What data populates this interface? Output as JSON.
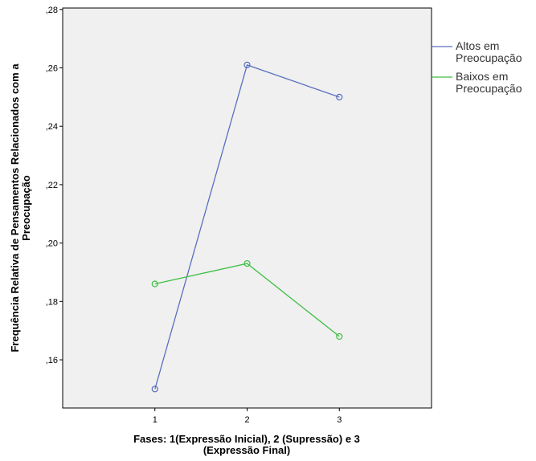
{
  "chart_data": {
    "type": "line",
    "x": [
      1,
      2,
      3
    ],
    "x_tick_labels": [
      "1",
      "2",
      "3"
    ],
    "y_tick_labels": [
      ",16",
      ",18",
      ",20",
      ",22",
      ",24",
      ",26",
      ",28"
    ],
    "y_ticks": [
      0.16,
      0.18,
      0.2,
      0.22,
      0.24,
      0.26,
      0.28
    ],
    "ylim": [
      0.1435,
      0.2805
    ],
    "xlim": [
      0.0,
      4.0
    ],
    "xlabel_lines": [
      "Fases: 1(Expressão Inicial), 2 (Supressão) e 3",
      "(Expressão Final)"
    ],
    "ylabel_lines": [
      "Frequência Relativa de Pensamentos Relacionados com a",
      "Preocupação"
    ],
    "grid": false,
    "legend_position": "right",
    "plot_background": "#f0f0f0",
    "series": [
      {
        "name_lines": [
          "Altos em",
          "Preocupação"
        ],
        "color": "#5a6fbf",
        "values": [
          0.15,
          0.261,
          0.25
        ]
      },
      {
        "name_lines": [
          "Baixos em",
          "Preocupação"
        ],
        "color": "#3fbf45",
        "values": [
          0.186,
          0.193,
          0.168
        ]
      }
    ]
  }
}
